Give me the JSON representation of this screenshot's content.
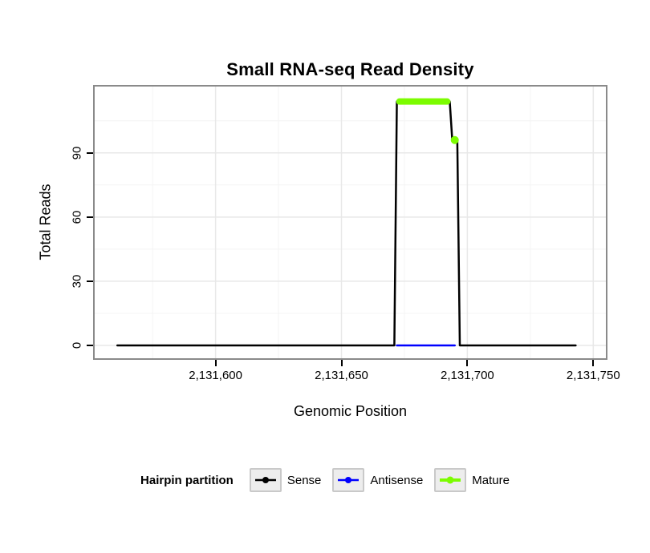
{
  "legend": {
    "title": "Hairpin partition",
    "items": [
      {
        "label": "Sense",
        "color": "#000000",
        "key_line_width": 2.5,
        "key_point_r": 4
      },
      {
        "label": "Antisense",
        "color": "#0000FF",
        "key_line_width": 2.5,
        "key_point_r": 4
      },
      {
        "label": "Mature",
        "color": "#7CFC00",
        "key_line_width": 4,
        "key_point_r": 4.5
      }
    ]
  },
  "chart_data": {
    "type": "line",
    "title": "Small RNA-seq Read Density",
    "xlabel": "Genomic Position",
    "ylabel": "Total Reads",
    "xlim": [
      2131552,
      2131755
    ],
    "ylim": [
      -6,
      121
    ],
    "grid_on": true,
    "legend_position": "bottom",
    "x_ticks": [
      {
        "value": 2131600,
        "label": "2,131,600"
      },
      {
        "value": 2131650,
        "label": "2,131,650"
      },
      {
        "value": 2131700,
        "label": "2,131,700"
      },
      {
        "value": 2131750,
        "label": "2,131,750"
      }
    ],
    "y_ticks": [
      {
        "value": 0,
        "label": "0"
      },
      {
        "value": 30,
        "label": "30"
      },
      {
        "value": 60,
        "label": "60"
      },
      {
        "value": 90,
        "label": "90"
      }
    ],
    "grid": {
      "minor_x": [
        2131575,
        2131625,
        2131675,
        2131725
      ],
      "minor_y": [
        15,
        45,
        75,
        105
      ]
    },
    "series": [
      {
        "name": "Sense",
        "color": "#000000",
        "width": 2.5,
        "points": [
          [
            2131561,
            0
          ],
          [
            2131671,
            0
          ],
          [
            2131672,
            114
          ],
          [
            2131693,
            114
          ],
          [
            2131694,
            96
          ],
          [
            2131696,
            96
          ],
          [
            2131697,
            0
          ],
          [
            2131743,
            0
          ]
        ]
      },
      {
        "name": "Antisense",
        "color": "#0000FF",
        "width": 2.5,
        "points": [
          [
            2131672,
            0
          ],
          [
            2131695,
            0
          ]
        ]
      },
      {
        "name": "Mature",
        "color": "#7CFC00",
        "width": 8,
        "points": [
          [
            2131673,
            114
          ],
          [
            2131692,
            114
          ]
        ],
        "markers": [
          [
            2131695,
            96
          ]
        ],
        "marker_r": 5
      }
    ]
  }
}
